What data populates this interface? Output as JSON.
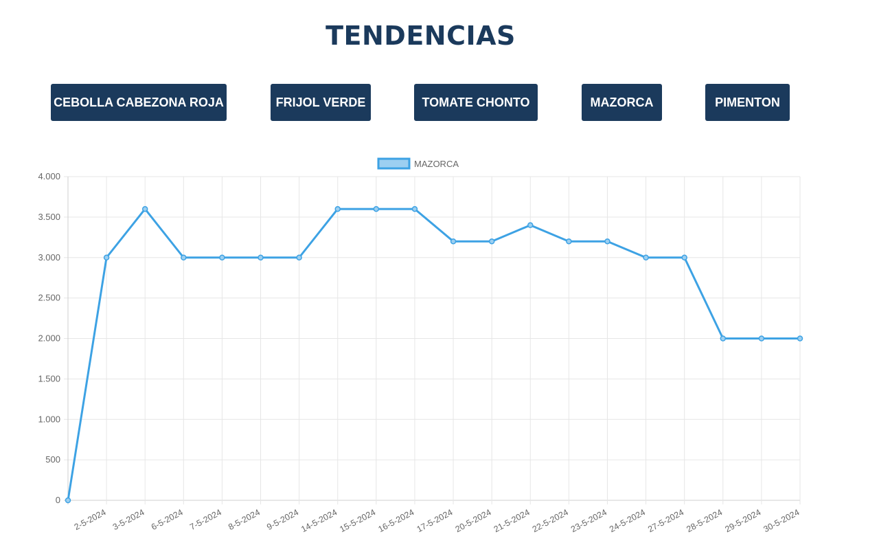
{
  "page": {
    "title": "TENDENCIAS"
  },
  "buttons": [
    {
      "label": "CEBOLLA CABEZONA ROJA"
    },
    {
      "label": "FRIJOL VERDE"
    },
    {
      "label": "TOMATE CHONTO"
    },
    {
      "label": "MAZORCA"
    },
    {
      "label": "PIMENTON"
    }
  ],
  "colors": {
    "button_bg": "#1b3a5c",
    "title": "#1b3a5c",
    "series_line": "#3da2e4",
    "series_fill": "#9ccff1"
  },
  "chart_data": {
    "type": "line",
    "title": "",
    "xlabel": "",
    "ylabel": "",
    "ylim": [
      0,
      4000
    ],
    "yticks": [
      0,
      500,
      1000,
      1500,
      2000,
      2500,
      3000,
      3500,
      4000
    ],
    "ytick_labels": [
      "0",
      "500",
      "1.000",
      "1.500",
      "2.000",
      "2.500",
      "3.000",
      "3.500",
      "4.000"
    ],
    "grid": true,
    "legend_position": "top-center",
    "categories": [
      "",
      "2-5-2024",
      "3-5-2024",
      "6-5-2024",
      "7-5-2024",
      "8-5-2024",
      "9-5-2024",
      "14-5-2024",
      "15-5-2024",
      "16-5-2024",
      "17-5-2024",
      "20-5-2024",
      "21-5-2024",
      "22-5-2024",
      "23-5-2024",
      "24-5-2024",
      "27-5-2024",
      "28-5-2024",
      "29-5-2024",
      "30-5-2024"
    ],
    "series": [
      {
        "name": "MAZORCA",
        "values": [
          0,
          3000,
          3600,
          3000,
          3000,
          3000,
          3000,
          3600,
          3600,
          3600,
          3200,
          3200,
          3400,
          3200,
          3200,
          3000,
          3000,
          2000,
          2000,
          2000
        ]
      }
    ]
  }
}
